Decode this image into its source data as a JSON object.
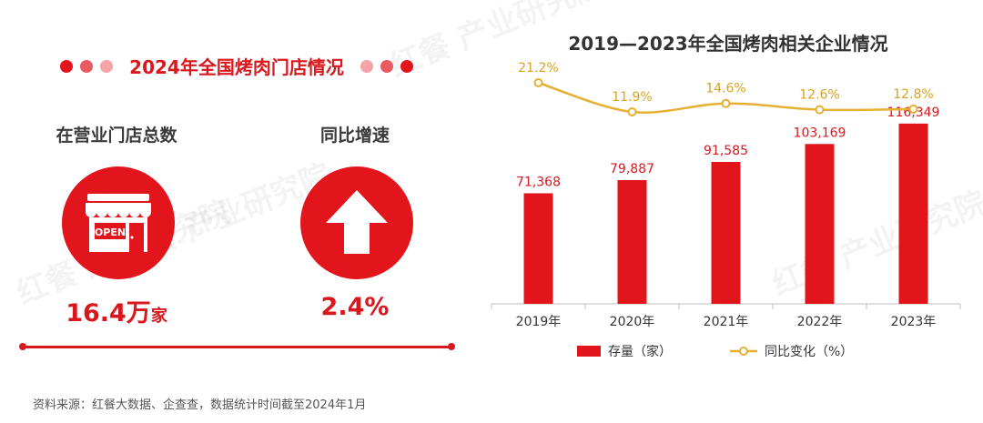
{
  "left": {
    "title": "2024年全国烤肉门店情况",
    "stat1": {
      "label": "在营业门店总数",
      "value": "16.4万",
      "unit": "家",
      "sign_text": "OPEN"
    },
    "stat2": {
      "label": "同比增速",
      "value": "2.4%"
    }
  },
  "watermark": "红餐 产业研究院",
  "source": "资料来源：红餐大数据、企查查，数据统计时间截至2024年1月",
  "colors": {
    "primary": "#e3151c",
    "line": "#e6b032",
    "dots_light": "#f4a3a7",
    "dots_mid": "#ea5a60"
  },
  "chart_data": {
    "type": "bar",
    "title": "2019—2023年全国烤肉相关企业情况",
    "categories": [
      "2019年",
      "2020年",
      "2021年",
      "2022年",
      "2023年"
    ],
    "series": [
      {
        "name": "存量（家）",
        "type": "bar",
        "values": [
          71368,
          79887,
          91585,
          103169,
          116349
        ],
        "labels": [
          "71,368",
          "79,887",
          "91,585",
          "103,169",
          "116,349"
        ]
      },
      {
        "name": "同比变化（%）",
        "type": "line",
        "values": [
          21.2,
          11.9,
          14.6,
          12.6,
          12.8
        ],
        "labels": [
          "21.2%",
          "11.9%",
          "14.6%",
          "12.6%",
          "12.8%"
        ]
      }
    ],
    "legend_position": "bottom"
  }
}
